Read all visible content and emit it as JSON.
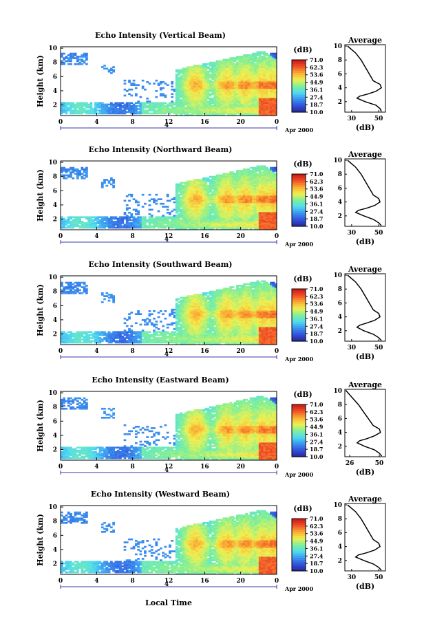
{
  "figure": {
    "xlabel": "Local Time",
    "date_label": "Apr 2000",
    "day_marker": "4"
  },
  "colorbar": {
    "unit_label": "(dB)",
    "ticks": [
      "71.0",
      "62.3",
      "53.6",
      "44.9",
      "36.1",
      "27.4",
      "18.7",
      "10.0"
    ],
    "range_db": [
      10.0,
      71.0
    ]
  },
  "average_panel": {
    "title": "Average",
    "xlabel": "(dB)"
  },
  "chart_data": [
    {
      "type": "heatmap",
      "title": "Echo Intensity (Vertical Beam)",
      "ylabel": "Height (km)",
      "x_ticks": [
        "0",
        "4",
        "8",
        "12",
        "16",
        "20",
        "0"
      ],
      "y_ticks": [
        "2",
        "4",
        "6",
        "8",
        "10"
      ],
      "xlim_hours": [
        0,
        24
      ],
      "ylim_km": [
        0.5,
        10.2
      ],
      "average_profile": {
        "x_ticks": [
          "30",
          "50"
        ],
        "xlim_db": [
          25,
          55
        ],
        "height_km": [
          0.6,
          1.0,
          1.5,
          2.0,
          2.5,
          2.8,
          3.1,
          3.5,
          4.0,
          4.5,
          5.0,
          6.0,
          7.0,
          8.0,
          9.0,
          10.0
        ],
        "db": [
          52,
          51,
          48,
          40,
          34,
          36,
          42,
          48,
          52,
          51,
          46,
          43,
          40,
          37,
          33,
          27
        ]
      }
    },
    {
      "type": "heatmap",
      "title": "Echo Intensity (Northward Beam)",
      "ylabel": "Height (km)",
      "x_ticks": [
        "0",
        "4",
        "8",
        "12",
        "16",
        "20",
        "0"
      ],
      "y_ticks": [
        "2",
        "4",
        "6",
        "8",
        "10"
      ],
      "xlim_hours": [
        0,
        24
      ],
      "ylim_km": [
        0.5,
        10.2
      ],
      "average_profile": {
        "x_ticks": [
          "30",
          "50"
        ],
        "xlim_db": [
          25,
          55
        ],
        "height_km": [
          0.6,
          1.0,
          1.5,
          2.0,
          2.5,
          2.8,
          3.1,
          3.5,
          4.0,
          4.5,
          5.0,
          6.0,
          7.0,
          8.0,
          9.0,
          10.0
        ],
        "db": [
          52,
          50,
          46,
          39,
          33,
          35,
          41,
          47,
          51,
          50,
          46,
          43,
          40,
          37,
          33,
          27
        ]
      }
    },
    {
      "type": "heatmap",
      "title": "Echo Intensity (Southward Beam)",
      "ylabel": "Height (km)",
      "x_ticks": [
        "0",
        "4",
        "8",
        "12",
        "16",
        "20",
        "0"
      ],
      "y_ticks": [
        "2",
        "4",
        "6",
        "8",
        "10"
      ],
      "xlim_hours": [
        0,
        24
      ],
      "ylim_km": [
        0.5,
        10.2
      ],
      "average_profile": {
        "x_ticks": [
          "30",
          "50"
        ],
        "xlim_db": [
          25,
          55
        ],
        "height_km": [
          0.6,
          1.0,
          1.5,
          2.0,
          2.5,
          2.8,
          3.1,
          3.5,
          4.0,
          4.5,
          5.0,
          6.0,
          7.0,
          8.0,
          9.0,
          10.0
        ],
        "db": [
          52,
          50,
          46,
          39,
          34,
          36,
          41,
          47,
          51,
          50,
          46,
          43,
          40,
          37,
          33,
          27
        ]
      }
    },
    {
      "type": "heatmap",
      "title": "Echo Intensity (Eastward Beam)",
      "ylabel": "Height (km)",
      "x_ticks": [
        "0",
        "4",
        "8",
        "12",
        "16",
        "20",
        "0"
      ],
      "y_ticks": [
        "2",
        "4",
        "6",
        "8",
        "10"
      ],
      "xlim_hours": [
        0,
        24
      ],
      "ylim_km": [
        0.5,
        10.2
      ],
      "average_profile": {
        "x_ticks": [
          "26",
          "50"
        ],
        "xlim_db": [
          22,
          55
        ],
        "height_km": [
          0.6,
          1.0,
          1.5,
          2.0,
          2.5,
          2.8,
          3.1,
          3.5,
          4.0,
          4.5,
          5.0,
          6.0,
          7.0,
          8.0,
          9.0,
          10.0
        ],
        "db": [
          52,
          50,
          46,
          38,
          32,
          34,
          40,
          46,
          51,
          50,
          45,
          41,
          37,
          33,
          28,
          23
        ]
      }
    },
    {
      "type": "heatmap",
      "title": "Echo Intensity (Westward Beam)",
      "ylabel": "Height (km)",
      "x_ticks": [
        "0",
        "4",
        "8",
        "12",
        "16",
        "20",
        "0"
      ],
      "y_ticks": [
        "2",
        "4",
        "6",
        "8",
        "10"
      ],
      "xlim_hours": [
        0,
        24
      ],
      "ylim_km": [
        0.5,
        10.2
      ],
      "average_profile": {
        "x_ticks": [
          "30",
          "50"
        ],
        "xlim_db": [
          25,
          55
        ],
        "height_km": [
          0.6,
          1.0,
          1.5,
          2.0,
          2.5,
          2.8,
          3.1,
          3.5,
          4.0,
          4.5,
          5.0,
          6.0,
          7.0,
          8.0,
          9.0,
          10.0
        ],
        "db": [
          52,
          50,
          46,
          39,
          33,
          35,
          41,
          47,
          51,
          50,
          46,
          43,
          40,
          37,
          33,
          27
        ]
      }
    }
  ]
}
